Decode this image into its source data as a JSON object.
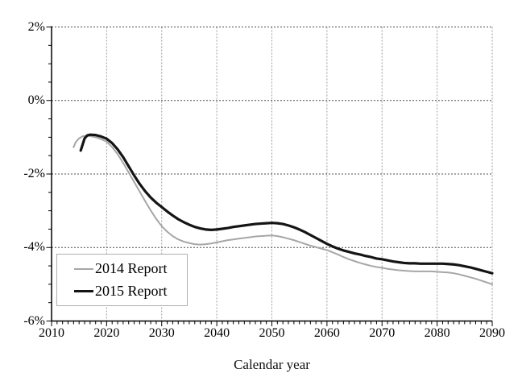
{
  "figure": {
    "background": "#ffffff"
  },
  "chart_data": {
    "type": "line",
    "title": "",
    "xlabel": "Calendar year",
    "ylabel": "",
    "xlim": [
      2010,
      2090
    ],
    "ylim": [
      -6,
      2
    ],
    "grid": true,
    "x_ticks": [
      {
        "value": 2010,
        "label": "2010"
      },
      {
        "value": 2020,
        "label": "2020"
      },
      {
        "value": 2030,
        "label": "2030"
      },
      {
        "value": 2040,
        "label": "2040"
      },
      {
        "value": 2050,
        "label": "2050"
      },
      {
        "value": 2060,
        "label": "2060"
      },
      {
        "value": 2070,
        "label": "2070"
      },
      {
        "value": 2080,
        "label": "2080"
      },
      {
        "value": 2090,
        "label": "2090"
      }
    ],
    "y_ticks": [
      {
        "value": 2,
        "label": "2%"
      },
      {
        "value": 0,
        "label": "0%"
      },
      {
        "value": -2,
        "label": "-2%"
      },
      {
        "value": -4,
        "label": "-4%"
      },
      {
        "value": -6,
        "label": "-6%"
      }
    ],
    "x_gridlines": [
      2020,
      2030,
      2040,
      2050,
      2060,
      2070,
      2080,
      2090
    ],
    "y_gridlines": [
      2,
      0,
      -2,
      -4
    ],
    "x_minor_tick_step": 1,
    "y_minor_tick_step": 0.5,
    "grid_color_horizontal": "#4d4d4d",
    "grid_color_vertical": "#9c9c9c",
    "axis_color": "#000000",
    "legend": {
      "position": "lower-left",
      "items": [
        "2014 Report",
        "2015 Report"
      ]
    },
    "series": [
      {
        "name": "2014 Report",
        "color": "#a6a6a6",
        "points": [
          [
            2014,
            -1.27
          ],
          [
            2014.4,
            -1.13
          ],
          [
            2015,
            -1.03
          ],
          [
            2015.7,
            -0.97
          ],
          [
            2016.5,
            -0.96
          ],
          [
            2017,
            -0.97
          ],
          [
            2018,
            -1.0
          ],
          [
            2019,
            -1.05
          ],
          [
            2020,
            -1.12
          ],
          [
            2021,
            -1.27
          ],
          [
            2022,
            -1.46
          ],
          [
            2023,
            -1.7
          ],
          [
            2024,
            -1.96
          ],
          [
            2025,
            -2.22
          ],
          [
            2026,
            -2.48
          ],
          [
            2027,
            -2.74
          ],
          [
            2028,
            -2.99
          ],
          [
            2029,
            -3.22
          ],
          [
            2030,
            -3.42
          ],
          [
            2031,
            -3.57
          ],
          [
            2032,
            -3.69
          ],
          [
            2033,
            -3.78
          ],
          [
            2034,
            -3.84
          ],
          [
            2035,
            -3.88
          ],
          [
            2036,
            -3.91
          ],
          [
            2037,
            -3.92
          ],
          [
            2038,
            -3.91
          ],
          [
            2039,
            -3.89
          ],
          [
            2040,
            -3.86
          ],
          [
            2041,
            -3.83
          ],
          [
            2042,
            -3.8
          ],
          [
            2043,
            -3.78
          ],
          [
            2044,
            -3.76
          ],
          [
            2045,
            -3.74
          ],
          [
            2046,
            -3.72
          ],
          [
            2047,
            -3.7
          ],
          [
            2048,
            -3.69
          ],
          [
            2049,
            -3.68
          ],
          [
            2050,
            -3.67
          ],
          [
            2051,
            -3.69
          ],
          [
            2052,
            -3.72
          ],
          [
            2053,
            -3.76
          ],
          [
            2054,
            -3.8
          ],
          [
            2055,
            -3.85
          ],
          [
            2056,
            -3.9
          ],
          [
            2057,
            -3.95
          ],
          [
            2058,
            -3.99
          ],
          [
            2059,
            -4.03
          ],
          [
            2060,
            -4.07
          ],
          [
            2061,
            -4.13
          ],
          [
            2062,
            -4.19
          ],
          [
            2063,
            -4.26
          ],
          [
            2064,
            -4.32
          ],
          [
            2065,
            -4.37
          ],
          [
            2066,
            -4.42
          ],
          [
            2067,
            -4.46
          ],
          [
            2068,
            -4.5
          ],
          [
            2069,
            -4.53
          ],
          [
            2070,
            -4.55
          ],
          [
            2071,
            -4.58
          ],
          [
            2072,
            -4.6
          ],
          [
            2073,
            -4.62
          ],
          [
            2074,
            -4.63
          ],
          [
            2075,
            -4.64
          ],
          [
            2076,
            -4.65
          ],
          [
            2077,
            -4.65
          ],
          [
            2078,
            -4.65
          ],
          [
            2079,
            -4.65
          ],
          [
            2080,
            -4.66
          ],
          [
            2081,
            -4.67
          ],
          [
            2082,
            -4.68
          ],
          [
            2083,
            -4.7
          ],
          [
            2084,
            -4.73
          ],
          [
            2085,
            -4.77
          ],
          [
            2086,
            -4.81
          ],
          [
            2087,
            -4.85
          ],
          [
            2088,
            -4.9
          ],
          [
            2089,
            -4.95
          ],
          [
            2090,
            -5.0
          ]
        ]
      },
      {
        "name": "2015 Report",
        "color": "#141414",
        "points": [
          [
            2015.3,
            -1.36
          ],
          [
            2015.6,
            -1.22
          ],
          [
            2016,
            -1.03
          ],
          [
            2016.5,
            -0.95
          ],
          [
            2017,
            -0.93
          ],
          [
            2018,
            -0.94
          ],
          [
            2019,
            -0.98
          ],
          [
            2020,
            -1.04
          ],
          [
            2021,
            -1.16
          ],
          [
            2022,
            -1.33
          ],
          [
            2023,
            -1.54
          ],
          [
            2024,
            -1.79
          ],
          [
            2025,
            -2.04
          ],
          [
            2026,
            -2.27
          ],
          [
            2027,
            -2.47
          ],
          [
            2028,
            -2.64
          ],
          [
            2029,
            -2.78
          ],
          [
            2030,
            -2.9
          ],
          [
            2031,
            -3.02
          ],
          [
            2032,
            -3.13
          ],
          [
            2033,
            -3.23
          ],
          [
            2034,
            -3.31
          ],
          [
            2035,
            -3.38
          ],
          [
            2036,
            -3.44
          ],
          [
            2037,
            -3.48
          ],
          [
            2038,
            -3.51
          ],
          [
            2039,
            -3.52
          ],
          [
            2040,
            -3.51
          ],
          [
            2041,
            -3.49
          ],
          [
            2042,
            -3.47
          ],
          [
            2043,
            -3.44
          ],
          [
            2044,
            -3.42
          ],
          [
            2045,
            -3.4
          ],
          [
            2046,
            -3.38
          ],
          [
            2047,
            -3.36
          ],
          [
            2048,
            -3.35
          ],
          [
            2049,
            -3.34
          ],
          [
            2050,
            -3.33
          ],
          [
            2051,
            -3.34
          ],
          [
            2052,
            -3.36
          ],
          [
            2053,
            -3.4
          ],
          [
            2054,
            -3.45
          ],
          [
            2055,
            -3.51
          ],
          [
            2056,
            -3.58
          ],
          [
            2057,
            -3.66
          ],
          [
            2058,
            -3.74
          ],
          [
            2059,
            -3.82
          ],
          [
            2060,
            -3.9
          ],
          [
            2061,
            -3.97
          ],
          [
            2062,
            -4.03
          ],
          [
            2063,
            -4.08
          ],
          [
            2064,
            -4.12
          ],
          [
            2065,
            -4.16
          ],
          [
            2066,
            -4.19
          ],
          [
            2067,
            -4.23
          ],
          [
            2068,
            -4.26
          ],
          [
            2069,
            -4.3
          ],
          [
            2070,
            -4.32
          ],
          [
            2071,
            -4.35
          ],
          [
            2072,
            -4.38
          ],
          [
            2073,
            -4.4
          ],
          [
            2074,
            -4.42
          ],
          [
            2075,
            -4.43
          ],
          [
            2076,
            -4.43
          ],
          [
            2077,
            -4.44
          ],
          [
            2078,
            -4.44
          ],
          [
            2079,
            -4.44
          ],
          [
            2080,
            -4.44
          ],
          [
            2081,
            -4.44
          ],
          [
            2082,
            -4.45
          ],
          [
            2083,
            -4.46
          ],
          [
            2084,
            -4.48
          ],
          [
            2085,
            -4.51
          ],
          [
            2086,
            -4.54
          ],
          [
            2087,
            -4.58
          ],
          [
            2088,
            -4.62
          ],
          [
            2089,
            -4.66
          ],
          [
            2090,
            -4.7
          ]
        ]
      }
    ]
  }
}
